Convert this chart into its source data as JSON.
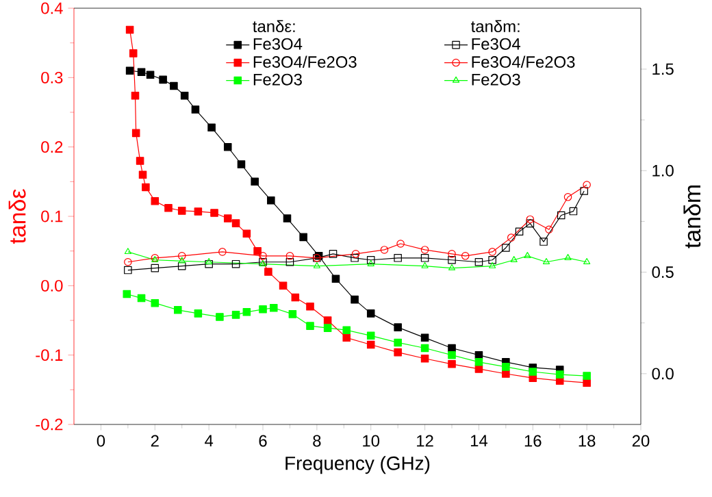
{
  "chart_data": {
    "type": "line",
    "xlabel": "Frequency (GHz)",
    "ylabel": "tanδε",
    "y2label": "tanδm",
    "annotations": [
      "tanδε:",
      "tanδm:"
    ],
    "xlim": [
      -1,
      20
    ],
    "xticks": [
      0,
      2,
      4,
      6,
      8,
      10,
      12,
      14,
      16,
      18,
      20
    ],
    "ylim": [
      -0.2,
      0.4
    ],
    "yticks": [
      -0.2,
      -0.1,
      {
        "value": 0,
        "label": "0.0"
      },
      0.1,
      0.2,
      0.3,
      0.4
    ],
    "y2lim": [
      -0.25,
      1.8
    ],
    "y2ticks": [
      {
        "value": 0,
        "label": "0.0"
      },
      0.5,
      {
        "value": 1,
        "label": "1.0"
      },
      1.5
    ],
    "legend": "top",
    "grid": false,
    "series": [
      {
        "name": "Fe3O4",
        "color": "#000000",
        "marker": "square",
        "x": [
          1.07,
          1.5,
          1.83,
          2.3,
          2.7,
          3.1,
          3.5,
          4.1,
          4.7,
          5.2,
          5.7,
          6.3,
          6.9,
          7.5,
          8.07,
          8.7,
          9.4,
          10,
          11,
          12,
          13,
          14,
          15,
          16,
          17
        ],
        "values": [
          0.31,
          0.308,
          0.304,
          0.297,
          0.288,
          0.274,
          0.254,
          0.228,
          0.2,
          0.175,
          0.15,
          0.123,
          0.097,
          0.07,
          0.043,
          0.01,
          -0.02,
          -0.04,
          -0.06,
          -0.075,
          -0.09,
          -0.1,
          -0.11,
          -0.118,
          -0.121
        ]
      },
      {
        "name": "Fe3O4/Fe2O3",
        "color": "#ff0000",
        "marker": "square",
        "x": [
          1.07,
          1.2,
          1.27,
          1.3,
          1.45,
          1.55,
          1.66,
          2.0,
          2.5,
          3.0,
          3.6,
          4.2,
          4.7,
          5.0,
          5.4,
          5.8,
          6.2,
          6.75,
          7.2,
          7.75,
          8.4,
          9.1,
          10,
          11,
          12,
          13,
          14,
          15,
          16,
          17,
          18
        ],
        "values": [
          0.369,
          0.335,
          0.274,
          0.22,
          0.18,
          0.16,
          0.142,
          0.122,
          0.112,
          0.108,
          0.107,
          0.105,
          0.097,
          0.09,
          0.075,
          0.05,
          0.02,
          0.0,
          -0.017,
          -0.03,
          -0.05,
          -0.075,
          -0.085,
          -0.096,
          -0.105,
          -0.113,
          -0.12,
          -0.127,
          -0.133,
          -0.137,
          -0.14
        ]
      },
      {
        "name": "Fe2O3",
        "color": "#00ff00",
        "marker": "square",
        "x": [
          0.96,
          1.5,
          2.0,
          2.85,
          3.6,
          4.4,
          5.0,
          5.4,
          6.0,
          6.4,
          7.1,
          7.75,
          8.4,
          9.1,
          10,
          11,
          12,
          13,
          14,
          15,
          16,
          17,
          18
        ],
        "values": [
          -0.012,
          -0.018,
          -0.025,
          -0.035,
          -0.04,
          -0.045,
          -0.042,
          -0.038,
          -0.034,
          -0.032,
          -0.041,
          -0.058,
          -0.061,
          -0.064,
          -0.072,
          -0.082,
          -0.09,
          -0.1,
          -0.11,
          -0.117,
          -0.124,
          -0.128,
          -0.13
        ]
      },
      {
        "name": "Fe3O4",
        "color": "#000000",
        "marker": "square",
        "axis": "y2",
        "x": [
          1,
          2,
          3,
          4,
          5,
          6,
          7,
          8,
          8.6,
          9.4,
          10,
          11,
          12,
          13,
          14,
          14.5,
          15,
          15.5,
          15.9,
          16.4,
          17.05,
          17.5,
          17.9
        ],
        "values": [
          0.51,
          0.52,
          0.53,
          0.54,
          0.54,
          0.55,
          0.55,
          0.57,
          0.59,
          0.57,
          0.56,
          0.57,
          0.57,
          0.56,
          0.55,
          0.56,
          0.62,
          0.7,
          0.74,
          0.65,
          0.78,
          0.8,
          0.9
        ]
      },
      {
        "name": "Fe3O4/Fe2O3",
        "color": "#ff0000",
        "marker": "circle",
        "axis": "y2",
        "x": [
          1,
          2,
          3,
          4.5,
          6,
          7,
          8,
          9.44,
          10.5,
          11.1,
          12,
          13,
          13.5,
          14.5,
          15.2,
          15.9,
          16.6,
          17.3,
          18
        ],
        "values": [
          0.55,
          0.57,
          0.58,
          0.6,
          0.58,
          0.58,
          0.57,
          0.59,
          0.61,
          0.64,
          0.61,
          0.59,
          0.58,
          0.6,
          0.67,
          0.76,
          0.71,
          0.87,
          0.93
        ]
      },
      {
        "name": "Fe2O3",
        "color": "#00ff00",
        "marker": "triangle",
        "axis": "y2",
        "x": [
          1,
          2,
          3,
          4,
          6,
          8,
          10,
          12,
          13,
          14.5,
          15.3,
          15.8,
          16.5,
          17.3,
          18
        ],
        "values": [
          0.6,
          0.56,
          0.555,
          0.55,
          0.54,
          0.53,
          0.54,
          0.53,
          0.52,
          0.53,
          0.56,
          0.58,
          0.55,
          0.57,
          0.55
        ]
      }
    ]
  }
}
